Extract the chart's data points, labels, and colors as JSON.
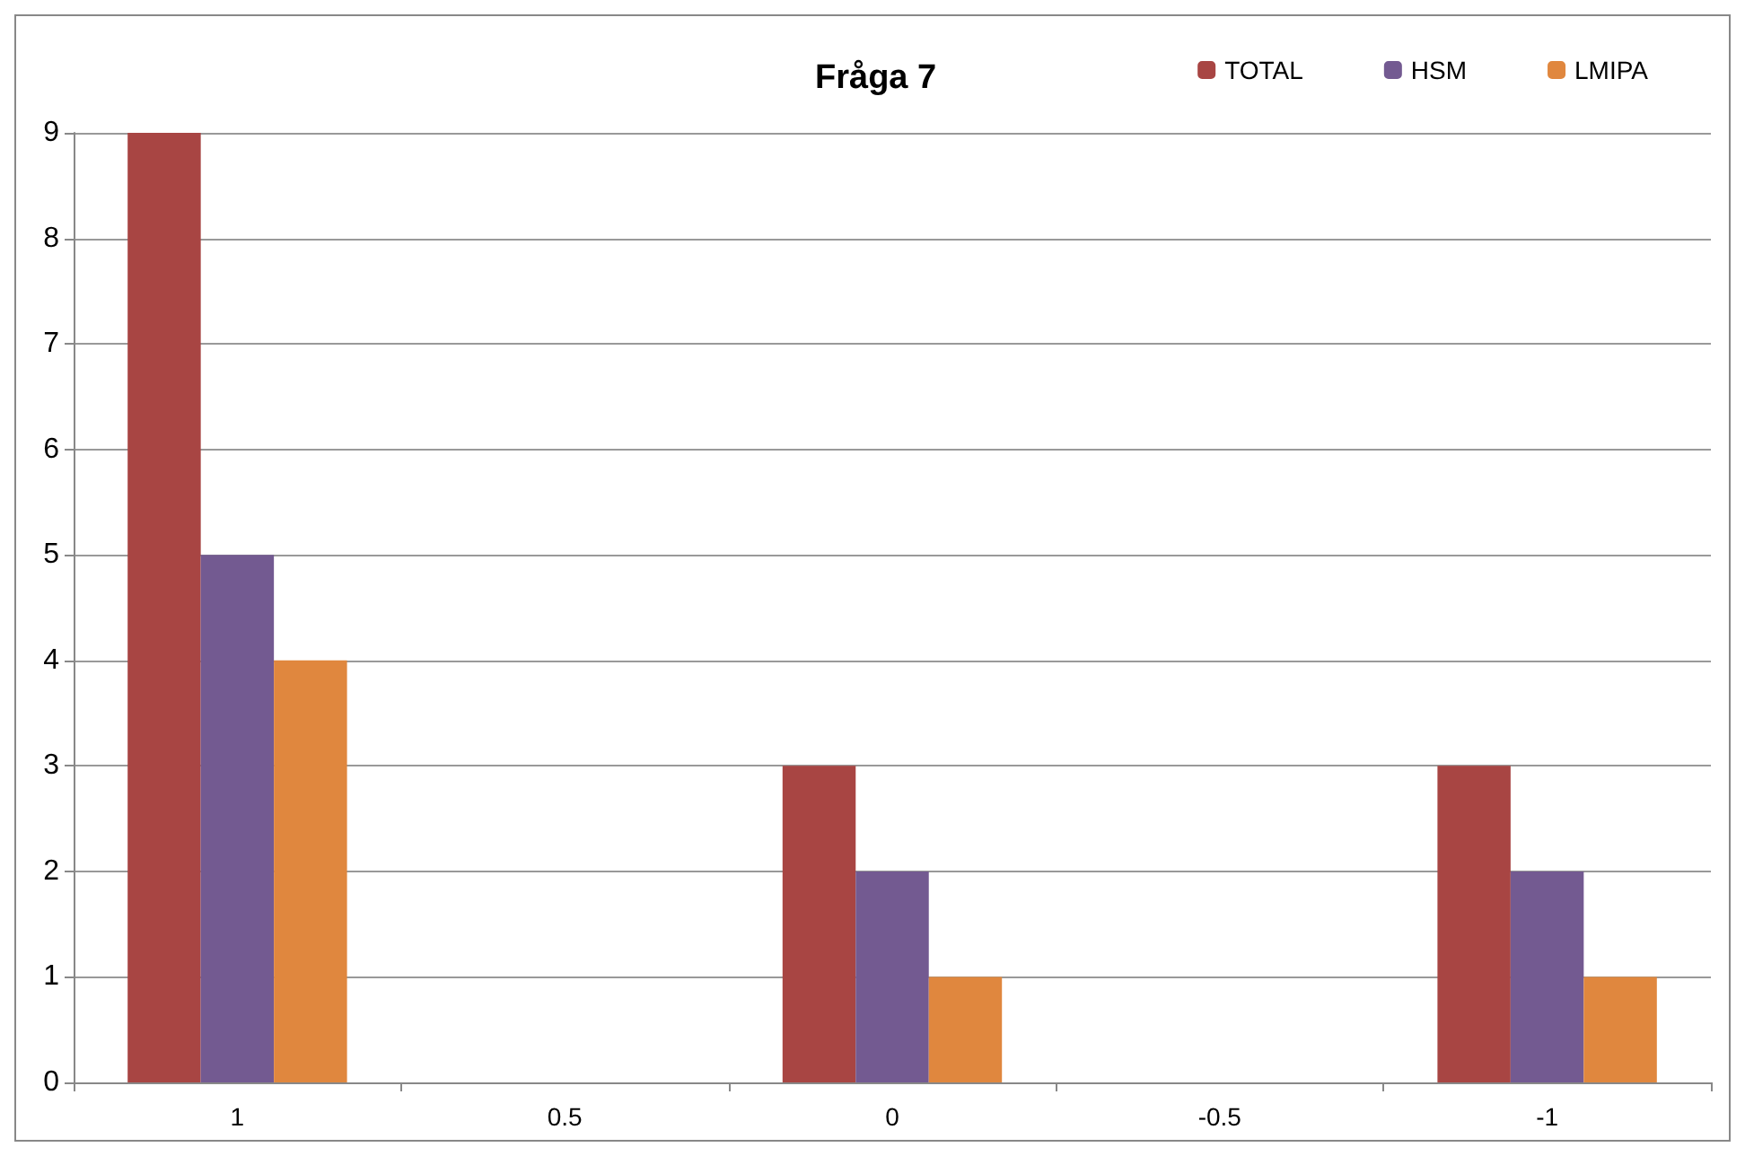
{
  "chart_data": {
    "type": "bar",
    "title": "Fråga 7",
    "categories": [
      "1",
      "0.5",
      "0",
      "-0.5",
      "-1"
    ],
    "series": [
      {
        "name": "TOTAL",
        "color": "#a84543",
        "values": [
          9,
          0,
          3,
          0,
          3
        ]
      },
      {
        "name": "HSM",
        "color": "#735a91",
        "values": [
          5,
          0,
          2,
          0,
          2
        ]
      },
      {
        "name": "LMIPA",
        "color": "#e0873e",
        "values": [
          4,
          0,
          1,
          0,
          1
        ]
      }
    ],
    "ylim": [
      0,
      9
    ],
    "yticks": [
      0,
      1,
      2,
      3,
      4,
      5,
      6,
      7,
      8,
      9
    ],
    "grid": "y",
    "legend": "top right"
  }
}
